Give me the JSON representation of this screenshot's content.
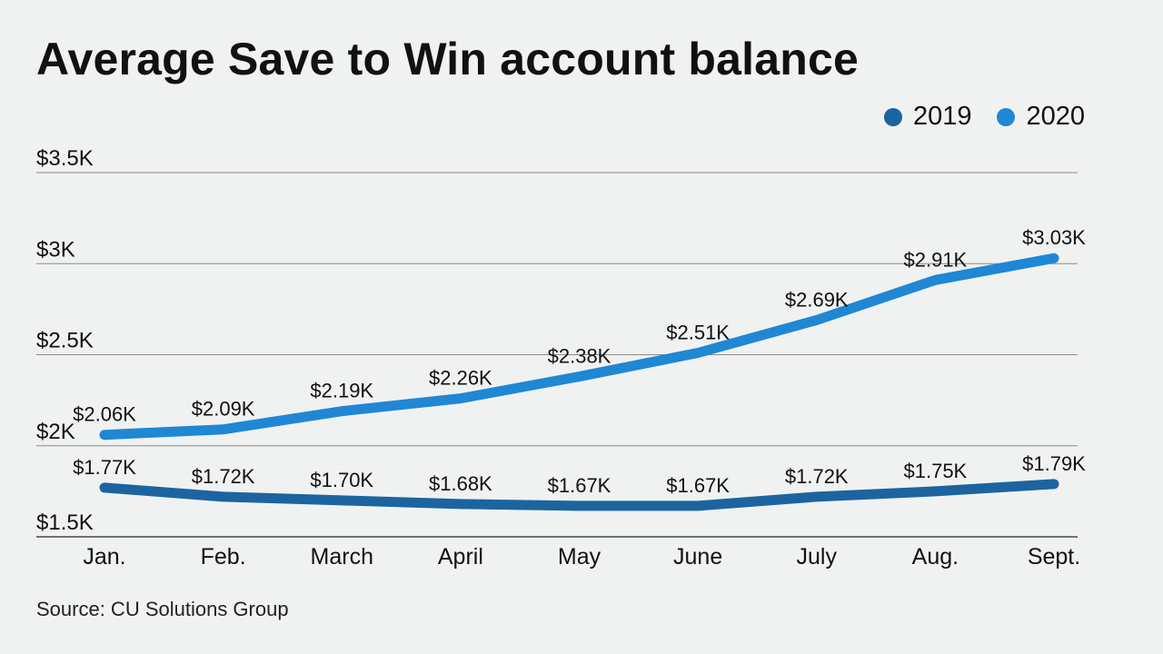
{
  "title": "Average Save to Win account balance",
  "source": "Source: CU Solutions Group",
  "chart_data": {
    "type": "line",
    "title": "Average Save to Win account balance",
    "categories": [
      "Jan.",
      "Feb.",
      "March",
      "April",
      "May",
      "June",
      "July",
      "Aug.",
      "Sept."
    ],
    "series": [
      {
        "name": "2019",
        "color": "#1c64a0",
        "values": [
          1.77,
          1.72,
          1.7,
          1.68,
          1.67,
          1.67,
          1.72,
          1.75,
          1.79
        ],
        "labels": [
          "$1.77K",
          "$1.72K",
          "$1.70K",
          "$1.68K",
          "$1.67K",
          "$1.67K",
          "$1.72K",
          "$1.75K",
          "$1.79K"
        ]
      },
      {
        "name": "2020",
        "color": "#1f87d4",
        "values": [
          2.06,
          2.09,
          2.19,
          2.26,
          2.38,
          2.51,
          2.69,
          2.91,
          3.03
        ],
        "labels": [
          "$2.06K",
          "$2.09K",
          "$2.19K",
          "$2.26K",
          "$2.38K",
          "$2.51K",
          "$2.69K",
          "$2.91K",
          "$3.03K"
        ]
      }
    ],
    "yticks": [
      1.5,
      2,
      2.5,
      3,
      3.5
    ],
    "ytick_labels": [
      "$1.5K",
      "$2K",
      "$2.5K",
      "$3K",
      "$3.5K"
    ],
    "ylim": [
      1.5,
      3.5
    ],
    "grid": true,
    "legend": "top-right",
    "xlabel": "",
    "ylabel": ""
  }
}
